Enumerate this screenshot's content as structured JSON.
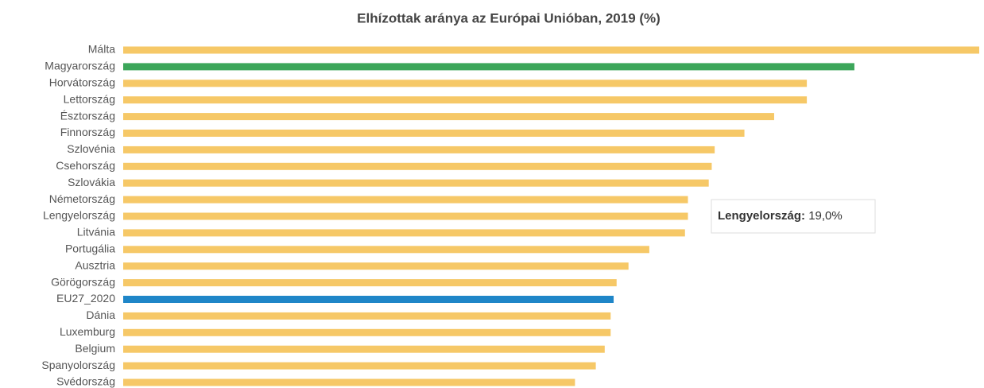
{
  "chart_data": {
    "type": "bar",
    "orientation": "horizontal",
    "title": "Elhízottak aránya az Európai Unióban, 2019 (%)",
    "categories": [
      "Málta",
      "Magyarország",
      "Horvátország",
      "Lettország",
      "Észtország",
      "Finnország",
      "Szlovénia",
      "Csehország",
      "Szlovákia",
      "Németország",
      "Lengyelország",
      "Litvánia",
      "Portugália",
      "Ausztria",
      "Görögország",
      "EU27_2020",
      "Dánia",
      "Luxemburg",
      "Belgium",
      "Spanyolország",
      "Svédország"
    ],
    "values": [
      28.8,
      24.6,
      23.0,
      23.0,
      21.9,
      20.9,
      19.9,
      19.8,
      19.7,
      19.0,
      19.0,
      18.9,
      17.7,
      17.0,
      16.6,
      16.5,
      16.4,
      16.4,
      16.2,
      15.9,
      15.2
    ],
    "colors": [
      "#f6c867",
      "#3ca65a",
      "#f6c867",
      "#f6c867",
      "#f6c867",
      "#f6c867",
      "#f6c867",
      "#f6c867",
      "#f6c867",
      "#f6c867",
      "#f6c867",
      "#f6c867",
      "#f6c867",
      "#f6c867",
      "#f6c867",
      "#1f86c8",
      "#f6c867",
      "#f6c867",
      "#f6c867",
      "#f6c867",
      "#f6c867"
    ],
    "tooltip": {
      "name": "Lengyelország:",
      "value": "19,0%"
    }
  }
}
